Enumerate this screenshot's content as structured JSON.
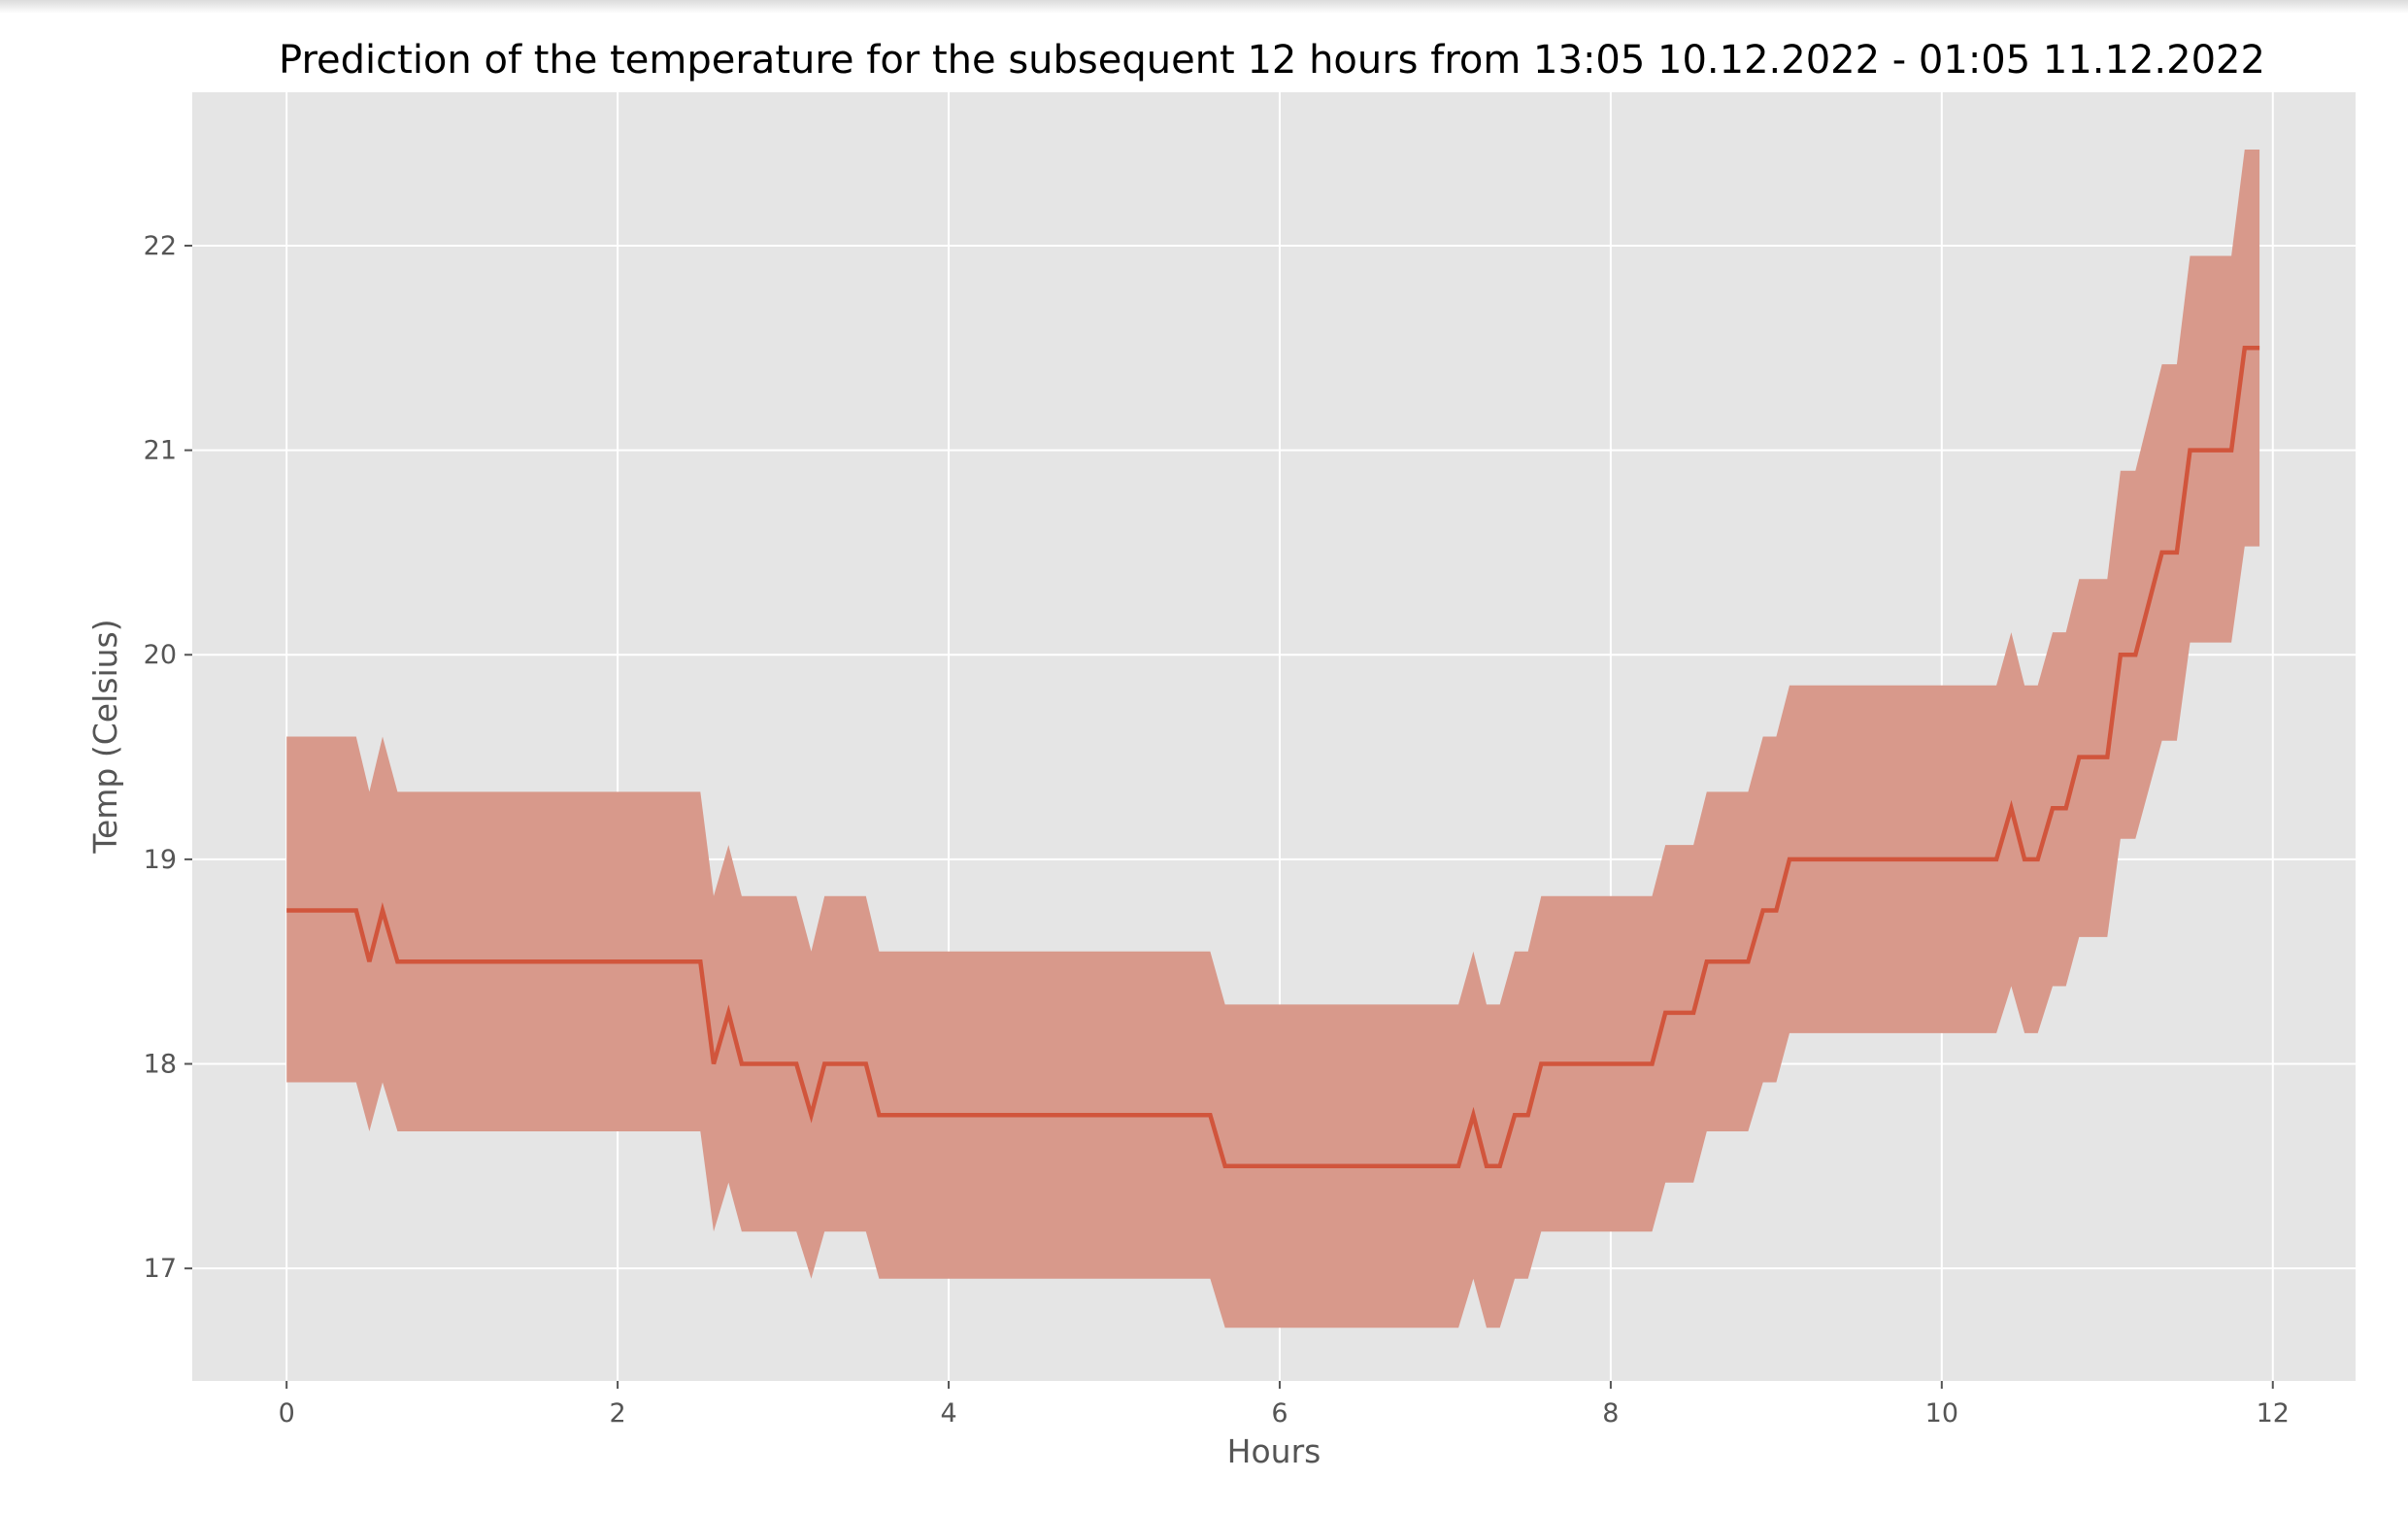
{
  "chart_data": {
    "type": "line",
    "title": "Prediction of the temperature for the subsequent 12 hours from 13:05 10.12.2022 - 01:05 11.12.2022",
    "xlabel": "Hours",
    "ylabel": "Temp (Celsius)",
    "xlim": [
      -0.57,
      12.5
    ],
    "ylim": [
      16.45,
      22.75
    ],
    "xticks": [
      0,
      2,
      4,
      6,
      8,
      10,
      12
    ],
    "yticks": [
      17,
      18,
      19,
      20,
      21,
      22
    ],
    "grid": true,
    "colors": {
      "line": "#d1553c",
      "band": "#d8998b",
      "background": "#e5e5e5",
      "grid": "#ffffff"
    },
    "series": [
      {
        "x": [
          0,
          0.42,
          0.5,
          0.58,
          0.67,
          2.5,
          2.58,
          2.67,
          2.75,
          3.08,
          3.17,
          3.25,
          3.5,
          3.58,
          5.58,
          5.67,
          7.08,
          7.17,
          7.25,
          7.33,
          7.42,
          7.5,
          7.58,
          8.25,
          8.33,
          8.5,
          8.58,
          8.83,
          8.92,
          9.0,
          9.08,
          10.33,
          10.42,
          10.5,
          10.58,
          10.67,
          10.75,
          10.83,
          11.0,
          11.08,
          11.17,
          11.33,
          11.42,
          11.5,
          11.75,
          11.83,
          11.92
        ],
        "y": [
          18.75,
          18.75,
          18.5,
          18.75,
          18.5,
          18.5,
          18.0,
          18.25,
          18.0,
          18.0,
          17.75,
          18.0,
          18.0,
          17.75,
          17.75,
          17.5,
          17.5,
          17.75,
          17.5,
          17.5,
          17.75,
          17.75,
          18.0,
          18.0,
          18.25,
          18.25,
          18.5,
          18.5,
          18.75,
          18.75,
          19.0,
          19.0,
          19.25,
          19.0,
          19.0,
          19.25,
          19.25,
          19.5,
          19.5,
          20.0,
          20.0,
          20.5,
          20.5,
          21.0,
          21.0,
          21.5,
          21.5
        ],
        "lower": [
          17.91,
          17.91,
          17.67,
          17.91,
          17.67,
          17.67,
          17.18,
          17.42,
          17.18,
          17.18,
          16.95,
          17.18,
          17.18,
          16.95,
          16.95,
          16.71,
          16.71,
          16.95,
          16.71,
          16.71,
          16.95,
          16.95,
          17.18,
          17.18,
          17.42,
          17.42,
          17.67,
          17.67,
          17.91,
          17.91,
          18.15,
          18.15,
          18.38,
          18.15,
          18.15,
          18.38,
          18.38,
          18.62,
          18.62,
          19.1,
          19.1,
          19.58,
          19.58,
          20.06,
          20.06,
          20.53,
          20.53
        ],
        "upper": [
          19.6,
          19.6,
          19.33,
          19.6,
          19.33,
          19.33,
          18.82,
          19.07,
          18.82,
          18.82,
          18.55,
          18.82,
          18.82,
          18.55,
          18.55,
          18.29,
          18.29,
          18.55,
          18.29,
          18.29,
          18.55,
          18.55,
          18.82,
          18.82,
          19.07,
          19.07,
          19.33,
          19.33,
          19.6,
          19.6,
          19.85,
          19.85,
          20.11,
          19.85,
          19.85,
          20.11,
          20.11,
          20.37,
          20.37,
          20.9,
          20.9,
          21.42,
          21.42,
          21.95,
          21.95,
          22.47,
          22.47
        ]
      }
    ]
  }
}
